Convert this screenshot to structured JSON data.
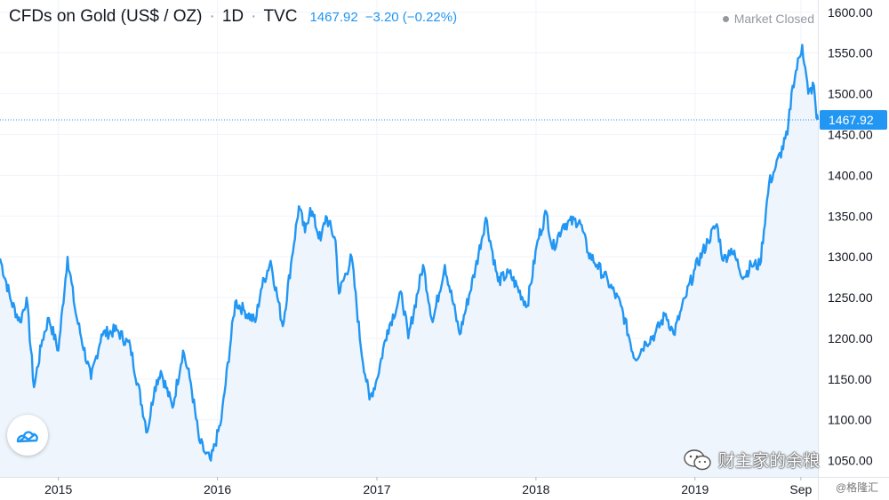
{
  "header": {
    "title": "CFDs on Gold (US$ / OZ)",
    "separator": "·",
    "interval": "1D",
    "source": "TVC",
    "price": "1467.92",
    "change": "−3.20 (−0.22%)"
  },
  "market_status": "Market Closed",
  "watermarks": {
    "primary": "财主家的余粮",
    "secondary": "@格隆汇"
  },
  "colors": {
    "line": "#2196f3",
    "area": "#eef5fc",
    "grid": "#f0f3fa",
    "axis_text": "#131722",
    "price_tag_bg": "#2196f3"
  },
  "chart_data": {
    "type": "area",
    "title": "CFDs on Gold (US$ / OZ)",
    "last_price": 1467.92,
    "x_ticks": [
      "2015",
      "2016",
      "2017",
      "2018",
      "2019",
      "Sep"
    ],
    "y_ticks": [
      "1050.00",
      "1100.00",
      "1150.00",
      "1200.00",
      "1250.00",
      "1300.00",
      "1350.00",
      "1400.00",
      "1450.00",
      "1500.00",
      "1550.00",
      "1600.00"
    ],
    "ylim": [
      1030,
      1615
    ],
    "x_range": [
      "2014-08-20",
      "2019-10-10"
    ],
    "grid": true,
    "series": [
      {
        "x": [
          "2014-08-20",
          "2014-09-15",
          "2014-10-05",
          "2014-10-20",
          "2014-11-06",
          "2014-11-25",
          "2014-12-10",
          "2015-01-01",
          "2015-01-22",
          "2015-02-10",
          "2015-03-17",
          "2015-04-10",
          "2015-05-15",
          "2015-06-15",
          "2015-07-24",
          "2015-08-10",
          "2015-08-24",
          "2015-09-20",
          "2015-10-14",
          "2015-11-01",
          "2015-11-20",
          "2015-12-03",
          "2015-12-17",
          "2016-01-10",
          "2016-02-11",
          "2016-03-01",
          "2016-03-28",
          "2016-04-10",
          "2016-05-02",
          "2016-05-30",
          "2016-06-20",
          "2016-07-06",
          "2016-07-20",
          "2016-08-01",
          "2016-08-25",
          "2016-09-06",
          "2016-09-28",
          "2016-10-06",
          "2016-11-04",
          "2016-11-25",
          "2016-12-15",
          "2017-01-01",
          "2017-01-25",
          "2017-02-27",
          "2017-03-14",
          "2017-04-17",
          "2017-05-09",
          "2017-06-06",
          "2017-07-10",
          "2017-08-15",
          "2017-09-08",
          "2017-10-06",
          "2017-11-01",
          "2017-12-12",
          "2018-01-05",
          "2018-01-25",
          "2018-02-08",
          "2018-03-05",
          "2018-04-11",
          "2018-05-01",
          "2018-05-21",
          "2018-06-15",
          "2018-07-15",
          "2018-08-16",
          "2018-09-10",
          "2018-10-01",
          "2018-10-26",
          "2018-11-13",
          "2018-12-10",
          "2019-01-01",
          "2019-01-31",
          "2019-02-20",
          "2019-03-07",
          "2019-03-25",
          "2019-04-23",
          "2019-05-10",
          "2019-05-30",
          "2019-06-20",
          "2019-07-05",
          "2019-08-01",
          "2019-08-13",
          "2019-09-04",
          "2019-09-18",
          "2019-10-01",
          "2019-10-07",
          "2019-10-10"
        ],
        "y": [
          1298,
          1245,
          1220,
          1250,
          1140,
          1198,
          1225,
          1185,
          1300,
          1230,
          1150,
          1205,
          1210,
          1190,
          1085,
          1140,
          1160,
          1115,
          1185,
          1145,
          1075,
          1060,
          1050,
          1100,
          1245,
          1235,
          1220,
          1260,
          1295,
          1215,
          1300,
          1362,
          1330,
          1360,
          1320,
          1350,
          1320,
          1255,
          1300,
          1190,
          1125,
          1150,
          1210,
          1255,
          1200,
          1290,
          1220,
          1290,
          1205,
          1285,
          1348,
          1270,
          1280,
          1240,
          1320,
          1355,
          1310,
          1340,
          1345,
          1305,
          1290,
          1270,
          1240,
          1175,
          1195,
          1205,
          1230,
          1205,
          1250,
          1285,
          1320,
          1340,
          1295,
          1310,
          1275,
          1290,
          1290,
          1390,
          1410,
          1450,
          1510,
          1560,
          1500,
          1510,
          1470,
          1468
        ]
      }
    ]
  }
}
